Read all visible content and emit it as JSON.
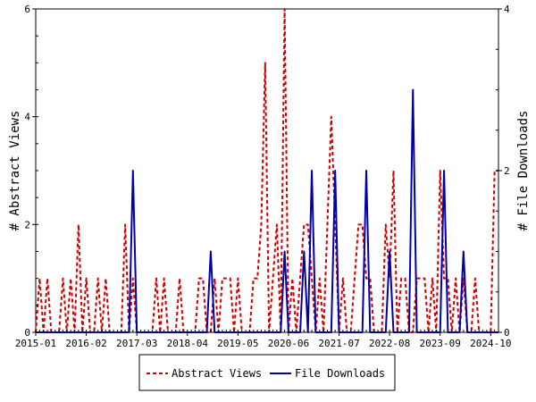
{
  "chart_data": {
    "type": "line",
    "x_tick_labels": [
      "2015-01",
      "2016-02",
      "2017-03",
      "2018-04",
      "2019-05",
      "2020-06",
      "2021-07",
      "2022-08",
      "2023-09",
      "2024-10"
    ],
    "y_left": {
      "label": "# Abstract Views",
      "ylim": [
        0,
        6
      ],
      "ticks": [
        "0",
        "2",
        "4",
        "6"
      ]
    },
    "y_right": {
      "label": "# File Downloads",
      "ylim": [
        0,
        4
      ],
      "ticks": [
        "0",
        "2",
        "4"
      ]
    },
    "legend": {
      "placement": "bottom-center"
    },
    "colors": {
      "abstract_views": "#cc0000",
      "file_downloads": "#0000aa"
    },
    "series": [
      {
        "name": "Abstract Views",
        "axis": "left",
        "style": "dashed",
        "values": [
          0,
          1,
          0,
          1,
          0,
          0,
          0,
          1,
          0,
          1,
          0,
          2,
          0,
          1,
          0,
          0,
          1,
          0,
          1,
          0,
          0,
          0,
          0,
          2,
          0,
          1,
          0,
          0,
          0,
          0,
          0,
          1,
          0,
          1,
          0,
          0,
          0,
          1,
          0,
          0,
          0,
          0,
          1,
          1,
          0,
          0,
          1,
          0,
          1,
          1,
          1,
          0,
          1,
          0,
          0,
          0,
          1,
          1,
          2,
          5,
          0,
          1,
          2,
          0,
          6,
          0,
          1,
          0,
          1,
          2,
          2,
          1,
          0,
          1,
          0,
          2,
          4,
          2,
          0,
          1,
          0,
          0,
          1,
          2,
          2,
          1,
          1,
          0,
          0,
          0,
          2,
          1,
          3,
          0,
          1,
          1,
          0,
          0,
          1,
          1,
          1,
          0,
          1,
          0,
          3,
          1,
          1,
          0,
          1,
          0,
          1,
          0,
          0,
          1,
          0,
          0,
          0,
          0,
          3,
          3
        ]
      },
      {
        "name": "File Downloads",
        "axis": "right",
        "style": "solid",
        "values": [
          0,
          0,
          0,
          0,
          0,
          0,
          0,
          0,
          0,
          0,
          0,
          0,
          0,
          0,
          0,
          0,
          0,
          0,
          0,
          0,
          0,
          0,
          0,
          0,
          0,
          2,
          0,
          0,
          0,
          0,
          0,
          0,
          0,
          0,
          0,
          0,
          0,
          0,
          0,
          0,
          0,
          0,
          0,
          0,
          0,
          1,
          0,
          0,
          0,
          0,
          0,
          0,
          0,
          0,
          0,
          0,
          0,
          0,
          0,
          0,
          0,
          0,
          0,
          0,
          1,
          0,
          0,
          0,
          0,
          1,
          0,
          2,
          0,
          0,
          0,
          0,
          0,
          2,
          0,
          0,
          0,
          0,
          0,
          0,
          0,
          2,
          0,
          0,
          0,
          0,
          0,
          1,
          0,
          0,
          0,
          0,
          0,
          3,
          0,
          0,
          0,
          0,
          0,
          0,
          0,
          2,
          0,
          0,
          0,
          0,
          1,
          0,
          0,
          0,
          0,
          0,
          0,
          0,
          0,
          0
        ]
      }
    ]
  }
}
